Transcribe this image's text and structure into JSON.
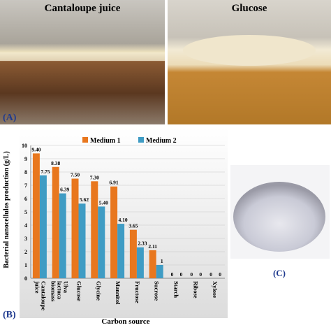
{
  "panels": {
    "photo_a_left": "Cantaloupe juice",
    "photo_a_right": "Glucose",
    "label_a": "(A)",
    "label_b": "(B)",
    "label_c": "(C)"
  },
  "chart_data": {
    "type": "bar",
    "categories": [
      "Cantaloupe juice",
      "Ulva lactuca biomass",
      "Glucose",
      "Glycine",
      "Mannitol",
      "Fructose",
      "Sucrose",
      "Starch",
      "Ribose",
      "Xylose"
    ],
    "series": [
      {
        "name": "Medium 1",
        "color": "#e8771e",
        "values": [
          9.4,
          8.38,
          7.5,
          7.3,
          6.91,
          3.65,
          2.11,
          0,
          0,
          0
        ],
        "value_labels": [
          "9.40",
          "8.38",
          "7.50",
          "7.30",
          "6.91",
          "3.65",
          "2.11",
          "0",
          "0",
          "0"
        ]
      },
      {
        "name": "Medium 2",
        "color": "#3f9cc4",
        "values": [
          7.75,
          6.39,
          5.62,
          5.4,
          4.1,
          2.33,
          1,
          0,
          0,
          0
        ],
        "value_labels": [
          "7.75",
          "6.39",
          "5.62",
          "5.40",
          "4.10",
          "2.33",
          "1",
          "0",
          "0",
          "0"
        ]
      }
    ],
    "ylim": [
      0,
      10
    ],
    "yticks": [
      0,
      1,
      2,
      3,
      4,
      5,
      6,
      7,
      8,
      9,
      10
    ],
    "grid": true,
    "legend": "top",
    "ylabel": "Bacterial nanocellulos production (g/L)",
    "xlabel": "Carbon source"
  }
}
